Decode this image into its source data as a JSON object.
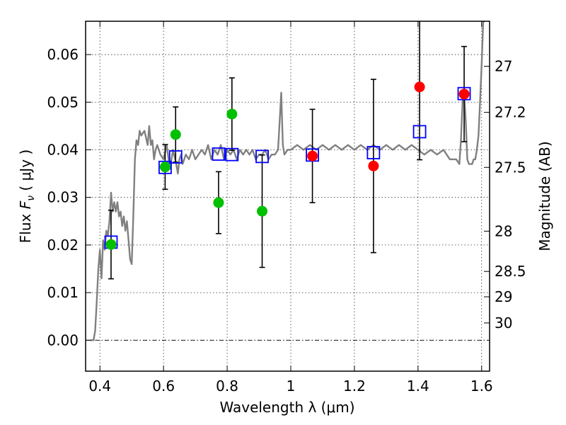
{
  "chart_data": {
    "type": "scatter",
    "xlabel": "Wavelength  λ (μm)",
    "ylabel": "Flux  F_ν  ( μJy )",
    "ylabel_parts": {
      "pre": "Flux ",
      "var": "F",
      "sub": "ν",
      "post": " ( μJy )"
    },
    "ylabel_right": "Magnitude (AB)",
    "xlim": [
      0.355,
      1.625
    ],
    "ylim": [
      -0.0065,
      0.067
    ],
    "grid": true,
    "x_ticks": [
      0.4,
      0.6,
      0.8,
      1.0,
      1.2,
      1.4,
      1.6
    ],
    "x_tick_labels": [
      "0.4",
      "0.6",
      "0.8",
      "1",
      "1.2",
      "1.4",
      "1.6"
    ],
    "y_ticks": [
      0.0,
      0.01,
      0.02,
      0.03,
      0.04,
      0.05,
      0.06
    ],
    "y_tick_labels": [
      "0.00",
      "0.01",
      "0.02",
      "0.03",
      "0.04",
      "0.05",
      "0.06"
    ],
    "mag_ticks": [
      {
        "mag": 27.0,
        "label": "27"
      },
      {
        "mag": 27.2,
        "label": "27.2"
      },
      {
        "mag": 27.5,
        "label": "27.5"
      },
      {
        "mag": 28.0,
        "label": "28"
      },
      {
        "mag": 28.5,
        "label": "28.5"
      },
      {
        "mag": 29.0,
        "label": "29"
      },
      {
        "mag": 30.0,
        "label": "30"
      }
    ],
    "zero_line": 0.0,
    "model_spectrum": {
      "color": "#808080",
      "x": [
        0.37,
        0.38,
        0.385,
        0.39,
        0.395,
        0.4,
        0.405,
        0.41,
        0.415,
        0.42,
        0.425,
        0.43,
        0.435,
        0.44,
        0.445,
        0.45,
        0.455,
        0.46,
        0.465,
        0.47,
        0.475,
        0.48,
        0.485,
        0.49,
        0.495,
        0.5,
        0.505,
        0.51,
        0.515,
        0.52,
        0.525,
        0.53,
        0.54,
        0.55,
        0.555,
        0.56,
        0.565,
        0.57,
        0.575,
        0.58,
        0.59,
        0.6,
        0.61,
        0.62,
        0.63,
        0.64,
        0.645,
        0.65,
        0.655,
        0.66,
        0.67,
        0.68,
        0.69,
        0.7,
        0.71,
        0.72,
        0.73,
        0.74,
        0.75,
        0.76,
        0.77,
        0.78,
        0.79,
        0.8,
        0.81,
        0.82,
        0.83,
        0.84,
        0.85,
        0.86,
        0.87,
        0.88,
        0.89,
        0.9,
        0.91,
        0.92,
        0.93,
        0.94,
        0.95,
        0.96,
        0.965,
        0.97,
        0.975,
        0.98,
        0.99,
        1.0,
        1.02,
        1.04,
        1.06,
        1.08,
        1.1,
        1.12,
        1.14,
        1.16,
        1.18,
        1.2,
        1.22,
        1.24,
        1.26,
        1.28,
        1.3,
        1.32,
        1.34,
        1.36,
        1.38,
        1.4,
        1.42,
        1.44,
        1.46,
        1.48,
        1.5,
        1.52,
        1.53,
        1.535,
        1.54,
        1.545,
        1.55,
        1.555,
        1.56,
        1.57,
        1.575,
        1.58,
        1.585,
        1.59,
        1.595,
        1.6,
        1.605,
        1.61
      ],
      "y": [
        0.0,
        0.0,
        0.002,
        0.008,
        0.015,
        0.019,
        0.013,
        0.021,
        0.019,
        0.023,
        0.022,
        0.025,
        0.031,
        0.027,
        0.029,
        0.027,
        0.029,
        0.026,
        0.027,
        0.024,
        0.026,
        0.023,
        0.025,
        0.021,
        0.017,
        0.016,
        0.026,
        0.038,
        0.042,
        0.041,
        0.044,
        0.043,
        0.044,
        0.041,
        0.045,
        0.041,
        0.042,
        0.038,
        0.04,
        0.041,
        0.039,
        0.038,
        0.041,
        0.036,
        0.04,
        0.037,
        0.035,
        0.038,
        0.039,
        0.037,
        0.039,
        0.038,
        0.04,
        0.038,
        0.039,
        0.04,
        0.039,
        0.041,
        0.038,
        0.04,
        0.039,
        0.041,
        0.038,
        0.04,
        0.039,
        0.04,
        0.038,
        0.04,
        0.039,
        0.04,
        0.039,
        0.04,
        0.038,
        0.039,
        0.039,
        0.04,
        0.038,
        0.039,
        0.039,
        0.04,
        0.046,
        0.052,
        0.041,
        0.039,
        0.04,
        0.04,
        0.041,
        0.04,
        0.041,
        0.04,
        0.041,
        0.04,
        0.041,
        0.04,
        0.041,
        0.04,
        0.041,
        0.04,
        0.041,
        0.04,
        0.041,
        0.04,
        0.041,
        0.04,
        0.041,
        0.04,
        0.039,
        0.04,
        0.039,
        0.04,
        0.038,
        0.038,
        0.037,
        0.042,
        0.05,
        0.052,
        0.046,
        0.038,
        0.037,
        0.037,
        0.038,
        0.038,
        0.04,
        0.043,
        0.05,
        0.058,
        0.067,
        0.067
      ]
    },
    "green_points": {
      "color": "#00c000",
      "points": [
        {
          "x": 0.435,
          "y": 0.0201,
          "err": 0.0072
        },
        {
          "x": 0.605,
          "y": 0.0364,
          "err": 0.0047
        },
        {
          "x": 0.638,
          "y": 0.0432,
          "err": 0.0058
        },
        {
          "x": 0.773,
          "y": 0.0289,
          "err": 0.0065
        },
        {
          "x": 0.815,
          "y": 0.0475,
          "err": 0.0076
        },
        {
          "x": 0.91,
          "y": 0.0271,
          "err": 0.0118
        }
      ]
    },
    "red_points": {
      "color": "#ff0000",
      "points": [
        {
          "x": 1.068,
          "y": 0.0387,
          "err": 0.0098
        },
        {
          "x": 1.26,
          "y": 0.0366,
          "err": 0.0182
        },
        {
          "x": 1.405,
          "y": 0.0532,
          "err": 0.0153
        },
        {
          "x": 1.545,
          "y": 0.0517,
          "err": 0.01
        }
      ]
    },
    "blue_squares": {
      "color": "#0000ff",
      "points": [
        {
          "x": 0.435,
          "y": 0.0206
        },
        {
          "x": 0.605,
          "y": 0.0363
        },
        {
          "x": 0.638,
          "y": 0.0385
        },
        {
          "x": 0.773,
          "y": 0.0391
        },
        {
          "x": 0.815,
          "y": 0.039
        },
        {
          "x": 0.91,
          "y": 0.0386
        },
        {
          "x": 1.068,
          "y": 0.0389
        },
        {
          "x": 1.26,
          "y": 0.0394
        },
        {
          "x": 1.405,
          "y": 0.0438
        },
        {
          "x": 1.545,
          "y": 0.0518
        }
      ]
    }
  }
}
